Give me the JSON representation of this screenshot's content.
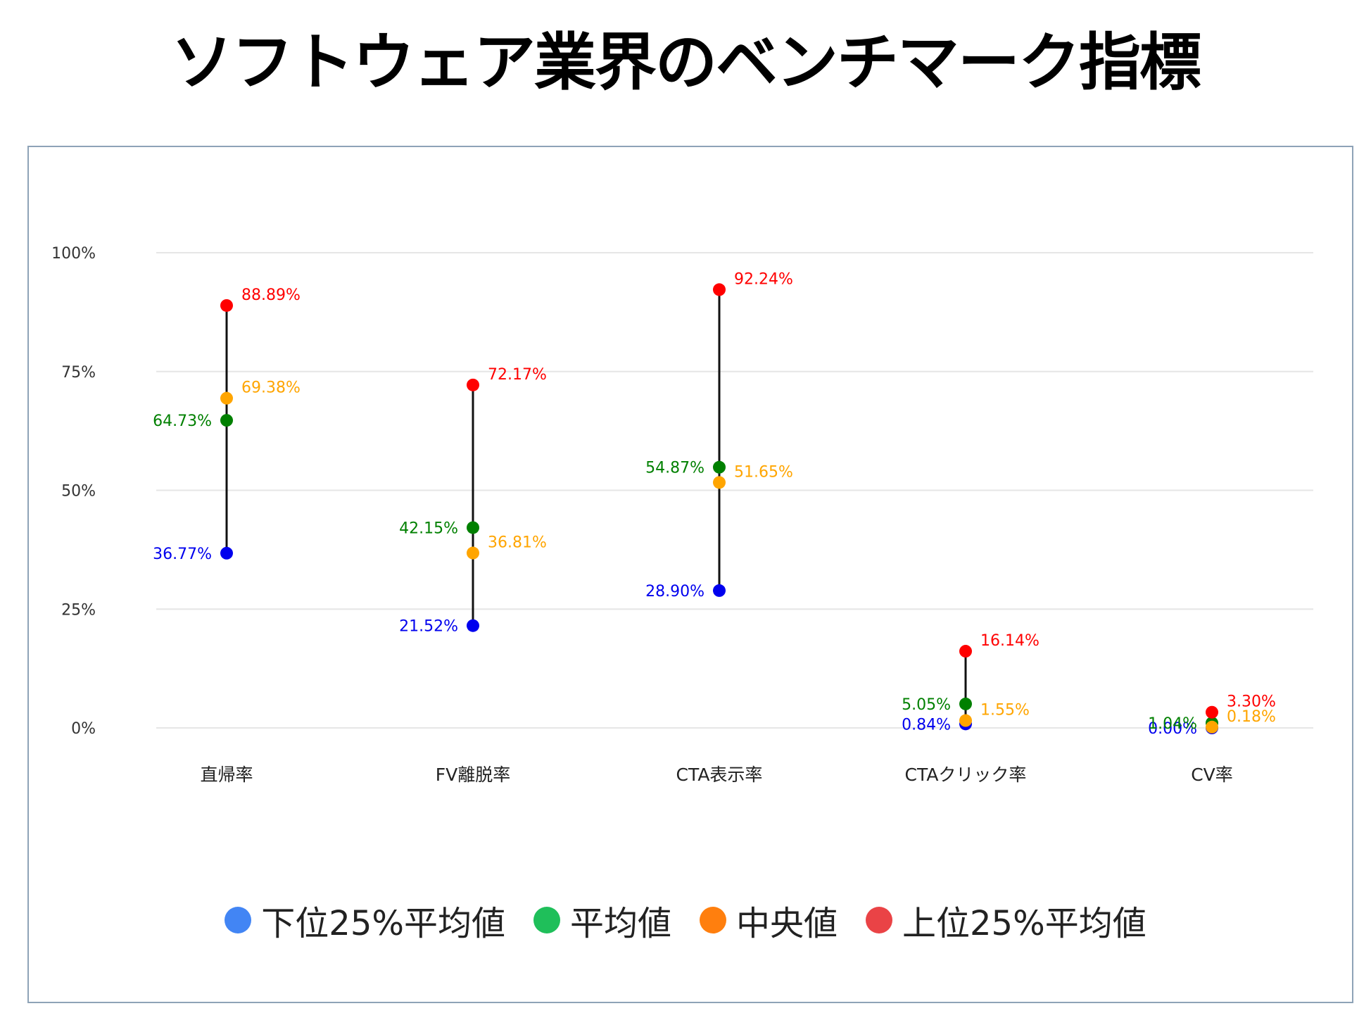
{
  "chart_data": {
    "type": "dot-range",
    "title": "ソフトウェア業界のベンチマーク指標",
    "categories": [
      "直帰率",
      "FV離脱率",
      "CTA表示率",
      "CTAクリック率",
      "CV率"
    ],
    "ylim": [
      0,
      100
    ],
    "y_ticks": [
      "0%",
      "25%",
      "50%",
      "75%",
      "100%"
    ],
    "grid": true,
    "legend_placement": "bottom",
    "series": [
      {
        "name": "下位25%平均値",
        "values": [
          36.77,
          21.52,
          28.9,
          0.84,
          0.0
        ],
        "labels": [
          "36.77%",
          "21.52%",
          "28.90%",
          "0.84%",
          "0.00%"
        ],
        "color": "#0000ee",
        "legend_color": "#4285f4",
        "label_side": "left"
      },
      {
        "name": "平均値",
        "values": [
          64.73,
          42.15,
          54.87,
          5.05,
          1.04
        ],
        "labels": [
          "64.73%",
          "42.15%",
          "54.87%",
          "5.05%",
          "1.04%"
        ],
        "color": "#008000",
        "legend_color": "#1fbf5a",
        "label_side": "left"
      },
      {
        "name": "中央値",
        "values": [
          69.38,
          36.81,
          51.65,
          1.55,
          0.18
        ],
        "labels": [
          "69.38%",
          "36.81%",
          "51.65%",
          "1.55%",
          "0.18%"
        ],
        "color": "#ffa500",
        "legend_color": "#ff7f0e",
        "label_side": "right"
      },
      {
        "name": "上位25%平均値",
        "values": [
          88.89,
          72.17,
          92.24,
          16.14,
          3.3
        ],
        "labels": [
          "88.89%",
          "72.17%",
          "92.24%",
          "16.14%",
          "3.30%"
        ],
        "color": "#ff0000",
        "legend_color": "#ea4346",
        "label_side": "right"
      }
    ]
  }
}
